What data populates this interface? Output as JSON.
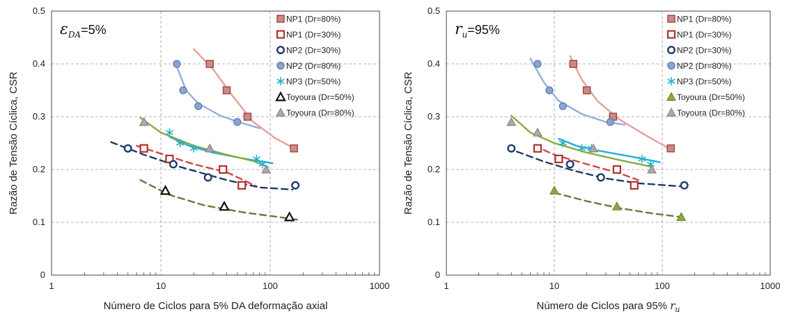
{
  "chart_data": [
    {
      "type": "scatter",
      "annotation": {
        "symbol": "ε",
        "sub": "DA",
        "rest": "=5%"
      },
      "xlabel": "Número de Ciclos para 5% DA deformação axial",
      "ylabel": "Razão de Tensão Cíclica, CSR",
      "xscale": "log",
      "xlim": [
        1,
        1000
      ],
      "ylim": [
        0,
        0.5
      ],
      "xticks": [
        "1",
        "10",
        "100",
        "1000"
      ],
      "yticks": [
        "0",
        "0.1",
        "0.2",
        "0.3",
        "0.4",
        "0.5"
      ],
      "grid": true,
      "legend_position": "top-right",
      "series": [
        {
          "name": "NP1 (Dr=80%)",
          "marker": "square-filled",
          "color": "#c98c88",
          "edge": "#a24a47",
          "points": [
            [
              28,
              0.4
            ],
            [
              40,
              0.35
            ],
            [
              62,
              0.3
            ],
            [
              165,
              0.24
            ]
          ],
          "trend": {
            "color": "#e8a09a",
            "dash": "solid",
            "points": [
              [
                20,
                0.428
              ],
              [
                30,
                0.39
              ],
              [
                45,
                0.34
              ],
              [
                70,
                0.29
              ],
              [
                110,
                0.26
              ],
              [
                165,
                0.24
              ]
            ]
          }
        },
        {
          "name": "NP1 (Dr=30%)",
          "marker": "square-open",
          "color": "#b03030",
          "points": [
            [
              7,
              0.24
            ],
            [
              12,
              0.22
            ],
            [
              37,
              0.2
            ],
            [
              55,
              0.17
            ]
          ],
          "trend": {
            "color": "#d24646",
            "dash": "dashed",
            "points": [
              [
                6,
                0.245
              ],
              [
                10,
                0.23
              ],
              [
                20,
                0.21
              ],
              [
                40,
                0.195
              ],
              [
                75,
                0.168
              ]
            ]
          }
        },
        {
          "name": "NP2 (Dr=30%)",
          "marker": "circle-open",
          "color": "#1f3a6a",
          "points": [
            [
              5,
              0.24
            ],
            [
              13,
              0.21
            ],
            [
              27,
              0.185
            ],
            [
              170,
              0.17
            ]
          ],
          "trend": {
            "color": "#1f3a6a",
            "dash": "dashed",
            "points": [
              [
                3.5,
                0.252
              ],
              [
                7,
                0.228
              ],
              [
                15,
                0.205
              ],
              [
                40,
                0.18
              ],
              [
                80,
                0.166
              ],
              [
                160,
                0.162
              ]
            ]
          }
        },
        {
          "name": "NP2 (Dr=80%)",
          "marker": "circle-filled",
          "color": "#8aa5d0",
          "edge": "#5a78aa",
          "points": [
            [
              14,
              0.4
            ],
            [
              16,
              0.35
            ],
            [
              22,
              0.32
            ],
            [
              50,
              0.29
            ]
          ],
          "trend": {
            "color": "#94afdc",
            "dash": "solid",
            "points": [
              [
                14,
                0.395
              ],
              [
                17,
                0.35
              ],
              [
                22,
                0.325
              ],
              [
                35,
                0.302
              ],
              [
                55,
                0.288
              ],
              [
                80,
                0.278
              ]
            ]
          }
        },
        {
          "name": "NP3 (Dr=50%)",
          "marker": "asterisk",
          "color": "#2ab0c8",
          "points": [
            [
              12,
              0.27
            ],
            [
              15,
              0.25
            ],
            [
              20,
              0.24
            ],
            [
              75,
              0.22
            ],
            [
              85,
              0.21
            ]
          ],
          "trend": {
            "color": "#1ab0e0",
            "dash": "solid",
            "points": [
              [
                12,
                0.262
              ],
              [
                18,
                0.245
              ],
              [
                30,
                0.232
              ],
              [
                60,
                0.22
              ],
              [
                105,
                0.212
              ]
            ]
          }
        },
        {
          "name": "Toyoura (Dr=50%)",
          "marker": "triangle-open",
          "color": "#111111",
          "points": [
            [
              11,
              0.16
            ],
            [
              38,
              0.13
            ],
            [
              150,
              0.11
            ]
          ],
          "trend": {
            "color": "#667a3a",
            "dash": "dashed",
            "points": [
              [
                6.5,
                0.18
              ],
              [
                12,
                0.152
              ],
              [
                25,
                0.132
              ],
              [
                60,
                0.118
              ],
              [
                120,
                0.11
              ],
              [
                190,
                0.104
              ]
            ]
          }
        },
        {
          "name": "Toyoura (Dr=80%)",
          "marker": "triangle-filled",
          "color": "#aaaaaa",
          "edge": "#888888",
          "points": [
            [
              7,
              0.29
            ],
            [
              28,
              0.24
            ],
            [
              92,
              0.2
            ]
          ],
          "trend": {
            "color": "#8aaa44",
            "dash": "solid",
            "points": [
              [
                6.5,
                0.298
              ],
              [
                10,
                0.27
              ],
              [
                20,
                0.245
              ],
              [
                40,
                0.228
              ],
              [
                70,
                0.216
              ],
              [
                95,
                0.205
              ]
            ]
          }
        }
      ]
    },
    {
      "type": "scatter",
      "annotation": {
        "symbol": "r",
        "sub": "u",
        "rest": "=95%"
      },
      "xlabel": "Número de Ciclos para 95% ",
      "xlabel_math": {
        "symbol": "r",
        "sub": "u"
      },
      "ylabel": "Razão de Tensão Cíclica, CSR",
      "xscale": "log",
      "xlim": [
        1,
        1000
      ],
      "ylim": [
        0,
        0.5
      ],
      "xticks": [
        "1",
        "10",
        "100",
        "1000"
      ],
      "yticks": [
        "0",
        "0.1",
        "0.2",
        "0.3",
        "0.4",
        "0.5"
      ],
      "grid": true,
      "legend_position": "top-right",
      "series": [
        {
          "name": "NP1 (Dr=80%)",
          "marker": "square-filled",
          "color": "#c98c88",
          "edge": "#a24a47",
          "points": [
            [
              15,
              0.4
            ],
            [
              20,
              0.35
            ],
            [
              35,
              0.3
            ],
            [
              120,
              0.24
            ]
          ],
          "trend": {
            "color": "#e8a09a",
            "dash": "solid",
            "points": [
              [
                14,
                0.415
              ],
              [
                18,
                0.37
              ],
              [
                25,
                0.33
              ],
              [
                40,
                0.295
              ],
              [
                70,
                0.265
              ],
              [
                115,
                0.24
              ]
            ]
          }
        },
        {
          "name": "NP1 (Dr=30%)",
          "marker": "square-open",
          "color": "#b03030",
          "points": [
            [
              7,
              0.24
            ],
            [
              11,
              0.22
            ],
            [
              38,
              0.2
            ],
            [
              55,
              0.17
            ]
          ],
          "trend": {
            "color": "#d24646",
            "dash": "dashed",
            "points": [
              [
                6.5,
                0.245
              ],
              [
                10,
                0.228
              ],
              [
                20,
                0.21
              ],
              [
                40,
                0.193
              ],
              [
                60,
                0.18
              ]
            ]
          }
        },
        {
          "name": "NP2 (Dr=30%)",
          "marker": "circle-open",
          "color": "#1f3a6a",
          "points": [
            [
              4,
              0.24
            ],
            [
              14,
              0.21
            ],
            [
              27,
              0.185
            ],
            [
              160,
              0.17
            ]
          ],
          "trend": {
            "color": "#1f3a6a",
            "dash": "dashed",
            "points": [
              [
                4.5,
                0.234
              ],
              [
                8,
                0.215
              ],
              [
                15,
                0.198
              ],
              [
                30,
                0.183
              ],
              [
                60,
                0.174
              ],
              [
                150,
                0.168
              ]
            ]
          }
        },
        {
          "name": "NP2 (Dr=80%)",
          "marker": "circle-filled",
          "color": "#8aa5d0",
          "edge": "#5a78aa",
          "points": [
            [
              7,
              0.4
            ],
            [
              9,
              0.35
            ],
            [
              12,
              0.32
            ],
            [
              33,
              0.29
            ]
          ],
          "trend": {
            "color": "#94afdc",
            "dash": "solid",
            "points": [
              [
                6,
                0.41
              ],
              [
                8,
                0.365
              ],
              [
                11,
                0.33
              ],
              [
                18,
                0.305
              ],
              [
                30,
                0.29
              ],
              [
                45,
                0.285
              ]
            ]
          }
        },
        {
          "name": "NP3 (Dr=50%)",
          "marker": "asterisk",
          "color": "#2ab0c8",
          "points": [
            [
              12,
              0.25
            ],
            [
              18,
              0.24
            ],
            [
              22,
              0.24
            ],
            [
              65,
              0.22
            ],
            [
              78,
              0.21
            ]
          ],
          "trend": {
            "color": "#1ab0e0",
            "dash": "solid",
            "points": [
              [
                11,
                0.258
              ],
              [
                16,
                0.245
              ],
              [
                25,
                0.236
              ],
              [
                50,
                0.225
              ],
              [
                95,
                0.214
              ]
            ]
          }
        },
        {
          "name": "Toyoura (Dr=50%)",
          "marker": "triangle-filled",
          "color": "#8aaa44",
          "edge": "#6a8a2a",
          "points": [
            [
              10,
              0.16
            ],
            [
              38,
              0.13
            ],
            [
              150,
              0.11
            ]
          ],
          "trend": {
            "color": "#667a3a",
            "dash": "dashed",
            "points": [
              [
                10,
                0.156
              ],
              [
                20,
                0.14
              ],
              [
                40,
                0.127
              ],
              [
                80,
                0.117
              ],
              [
                150,
                0.11
              ]
            ]
          }
        },
        {
          "name": "Toyoura (Dr=80%)",
          "marker": "triangle-filled",
          "color": "#aaaaaa",
          "edge": "#888888",
          "points": [
            [
              4,
              0.29
            ],
            [
              7,
              0.27
            ],
            [
              23,
              0.24
            ],
            [
              80,
              0.2
            ]
          ],
          "trend": {
            "color": "#8aaa44",
            "dash": "solid",
            "points": [
              [
                4,
                0.302
              ],
              [
                6,
                0.27
              ],
              [
                10,
                0.25
              ],
              [
                20,
                0.232
              ],
              [
                40,
                0.218
              ],
              [
                80,
                0.205
              ]
            ]
          }
        }
      ]
    }
  ]
}
